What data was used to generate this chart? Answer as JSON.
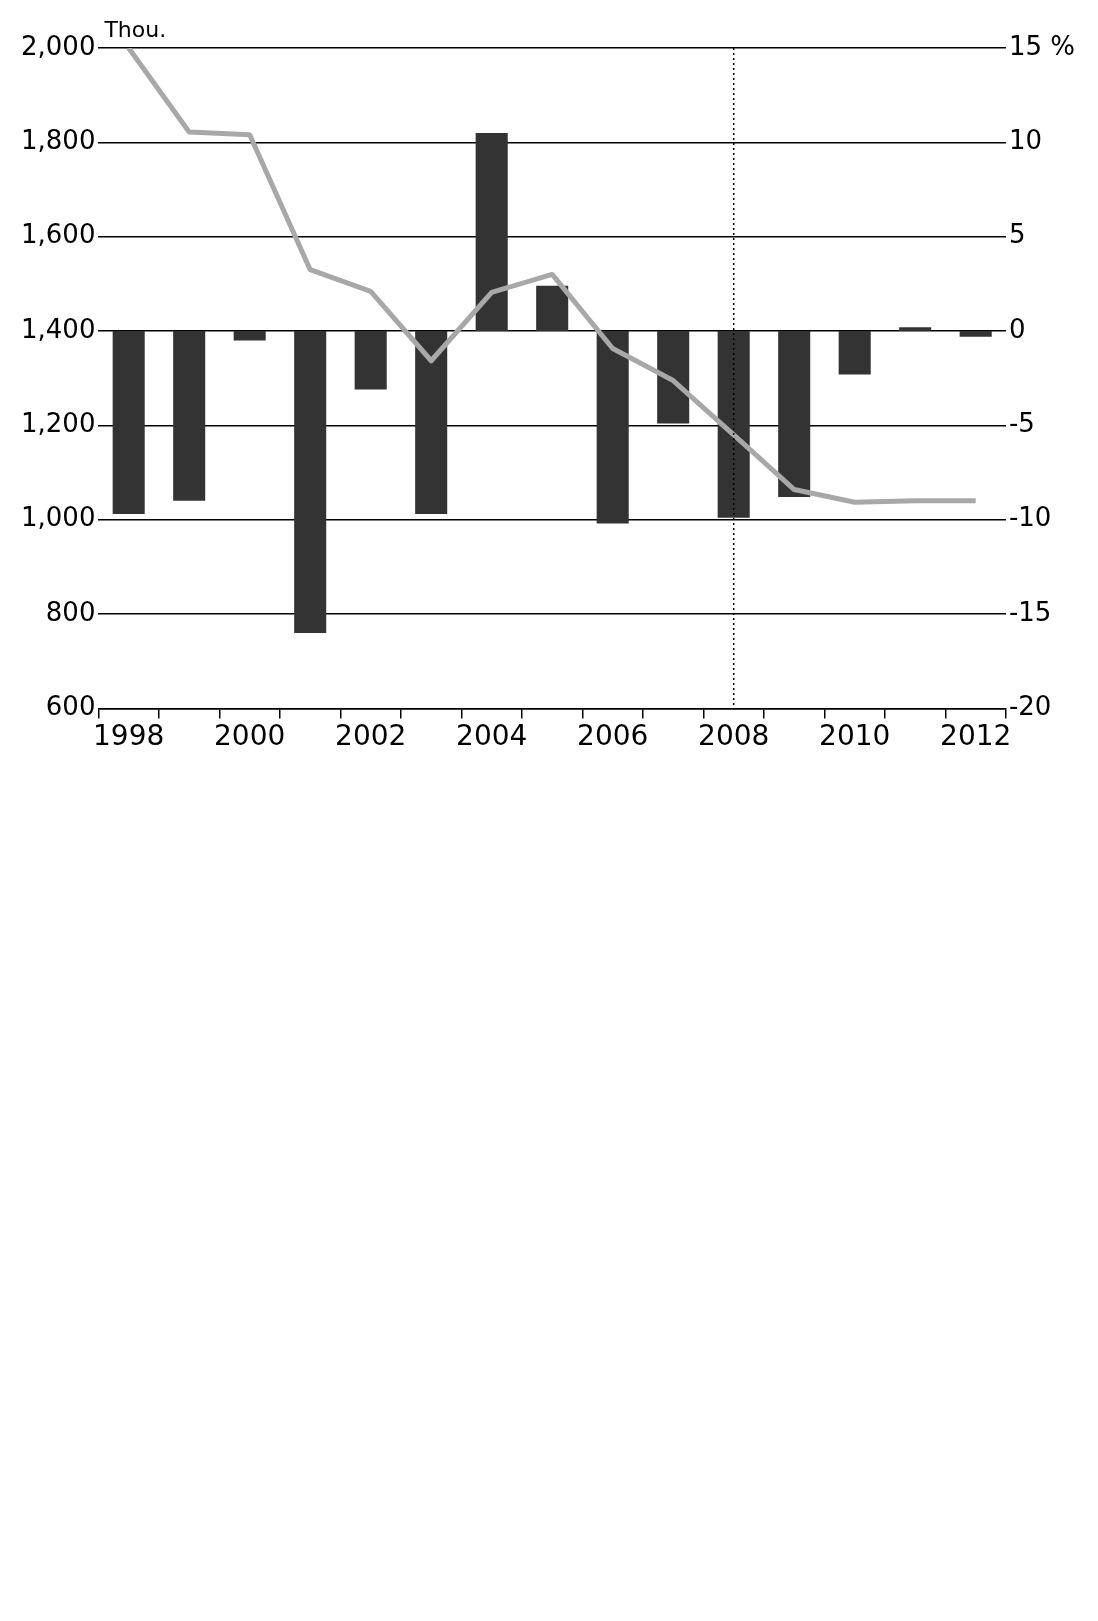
{
  "chart_data": {
    "type": "bar",
    "ylabel": "Thou.",
    "categories": [
      "1998",
      null,
      "2000",
      null,
      "2002",
      null,
      "2004",
      null,
      "2006",
      null,
      "2008",
      null,
      "2010",
      null,
      "2012"
    ],
    "series": [
      {
        "axis": "y2",
        "color": "#333333",
        "values": [
          -9.7,
          -9.0,
          -0.5,
          -16.0,
          -3.1,
          -9.7,
          10.5,
          2.4,
          -10.2,
          -4.9,
          -9.9,
          -8.8,
          -2.3,
          0.2,
          -0.3
        ]
      },
      {
        "type": "line",
        "axis": "y",
        "color": "#a8a8a8",
        "values": [
          2000,
          1822,
          1816,
          1530,
          1484,
          1337,
          1482,
          1520,
          1363,
          1295,
          1180,
          1064,
          1037,
          1040,
          1040
        ]
      }
    ],
    "ylim": [
      600,
      2000
    ],
    "yticks": [
      {
        "value": 600,
        "label": "600"
      },
      {
        "value": 800,
        "label": "800"
      },
      {
        "value": 1000,
        "label": "1,000"
      },
      {
        "value": 1200,
        "label": "1,200"
      },
      {
        "value": 1400,
        "label": "1,400"
      },
      {
        "value": 1600,
        "label": "1,600"
      },
      {
        "value": 1800,
        "label": "1,800"
      },
      {
        "value": 2000,
        "label": "2,000"
      }
    ],
    "y2lim": [
      -20,
      15
    ],
    "y2ticks": [
      -20,
      -15,
      -10,
      -5,
      0,
      5,
      10,
      {
        "value": 15,
        "label": "15 %"
      }
    ],
    "ref_lines": [
      {
        "axis": "x",
        "value": "2008",
        "line_style": "dotted",
        "color": "#000000"
      }
    ],
    "grid": "y",
    "legend": false,
    "marker": "none"
  }
}
